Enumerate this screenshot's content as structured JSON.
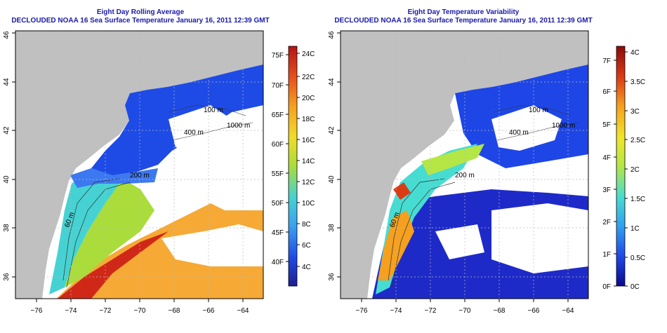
{
  "panels": [
    {
      "title": "Eight Day Rolling Average",
      "subtitle": "DECLOUDED NOAA 16 Sea Surface Temperature January 16, 2011 12:39 GMT",
      "x_ticks": [
        "−76",
        "−74",
        "−72",
        "−70",
        "−68",
        "−66",
        "−64"
      ],
      "y_ticks": [
        "36",
        "38",
        "40",
        "42",
        "44",
        "46"
      ],
      "contours": [
        "100 m",
        "1000 m",
        "200 m",
        "60 m",
        "400 m"
      ],
      "colorbar_f": [
        "75F",
        "70F",
        "65F",
        "60F",
        "55F",
        "50F",
        "45F",
        "40F"
      ],
      "colorbar_c": [
        "24C",
        "22C",
        "20C",
        "18C",
        "16C",
        "14C",
        "12C",
        "10C",
        "8C",
        "6C",
        "4C"
      ]
    },
    {
      "title": "Eight Day Temperature Variability",
      "subtitle": "DECLOUDED NOAA 16 Sea Surface Temperature January 16, 2011 12:39 GMT",
      "x_ticks": [
        "−76",
        "−74",
        "−72",
        "−70",
        "−68",
        "−66",
        "−64"
      ],
      "y_ticks": [
        "36",
        "38",
        "40",
        "42",
        "44",
        "46"
      ],
      "contours": [
        "100 m",
        "1000 m",
        "200 m",
        "60 m",
        "400 m"
      ],
      "colorbar_f": [
        "7F",
        "6F",
        "5F",
        "4F",
        "3F",
        "2F",
        "1F",
        "0F"
      ],
      "colorbar_c": [
        "4C",
        "3.5C",
        "3C",
        "2.5C",
        "2C",
        "1.5C",
        "1C",
        "0.5C",
        "0C"
      ]
    }
  ],
  "colors": {
    "land": "#c0c0c0",
    "title": "#1a1aa8",
    "sst_scale": [
      "#1e1e8c",
      "#1e4be6",
      "#3ca0f0",
      "#46d2d2",
      "#aadc3c",
      "#f0dc28",
      "#f5a01e",
      "#e6501e",
      "#b41414"
    ],
    "var_scale": [
      "#0a0a8c",
      "#1e46e6",
      "#32a0f0",
      "#46dcd2",
      "#b4e646",
      "#f0e628",
      "#f5a01e",
      "#dc3c14",
      "#8c0a0a"
    ]
  }
}
